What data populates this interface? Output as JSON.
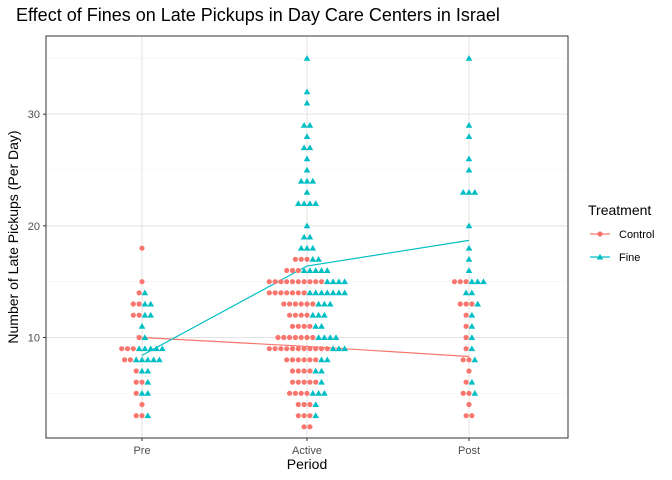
{
  "chart_data": {
    "type": "scatter",
    "title": "Effect of Fines on Late Pickups in Day Care Centers in Israel",
    "xlabel": "Period",
    "ylabel": "Number of Late Pickups (Per Day)",
    "categories": [
      "Pre",
      "Active",
      "Post"
    ],
    "ylim": [
      1,
      37
    ],
    "yticks": [
      10,
      20,
      30
    ],
    "grid": true,
    "legend": {
      "title": "Treatment",
      "position": "right",
      "entries": [
        {
          "label": "Control",
          "shape": "circle",
          "color": "#F8766D"
        },
        {
          "label": "Fine",
          "shape": "triangle",
          "color": "#00BFC4"
        }
      ]
    },
    "series": [
      {
        "name": "Control",
        "shape": "circle",
        "color": "#F8766D",
        "means": [
          10.0,
          9.2,
          8.3
        ],
        "values": {
          "Pre": [
            18,
            15,
            14,
            13,
            13,
            12,
            12,
            10,
            9,
            9,
            9,
            8,
            8,
            7,
            6,
            6,
            5,
            4,
            3,
            3
          ],
          "Active": [
            17,
            17,
            17,
            16,
            16,
            16,
            15,
            15,
            15,
            15,
            15,
            15,
            15,
            15,
            15,
            15,
            14,
            14,
            14,
            14,
            14,
            14,
            14,
            13,
            13,
            13,
            13,
            13,
            13,
            12,
            12,
            12,
            12,
            11,
            11,
            11,
            11,
            10,
            10,
            10,
            10,
            10,
            10,
            10,
            9,
            9,
            9,
            9,
            9,
            9,
            9,
            9,
            9,
            9,
            9,
            8,
            8,
            8,
            8,
            8,
            8,
            7,
            7,
            7,
            7,
            6,
            6,
            6,
            6,
            6,
            5,
            5,
            5,
            5,
            4,
            4,
            4,
            3,
            3,
            3,
            2,
            2
          ],
          "Post": [
            15,
            15,
            15,
            13,
            13,
            13,
            12,
            11,
            10,
            9,
            8,
            8,
            7,
            6,
            5,
            5,
            4,
            3,
            3
          ]
        }
      },
      {
        "name": "Fine",
        "shape": "triangle",
        "color": "#00BFC4",
        "means": [
          8.4,
          16.4,
          18.7
        ],
        "values": {
          "Pre": [
            14,
            13,
            13,
            12,
            12,
            11,
            10,
            9,
            9,
            9,
            9,
            9,
            8,
            8,
            8,
            8,
            8,
            7,
            7,
            6,
            5,
            5,
            3
          ],
          "Active": [
            35,
            32,
            31,
            29,
            29,
            28,
            27,
            27,
            26,
            25,
            24,
            24,
            24,
            23,
            22,
            22,
            22,
            22,
            20,
            19,
            19,
            18,
            18,
            18,
            17,
            17,
            16,
            16,
            16,
            16,
            16,
            15,
            15,
            15,
            15,
            14,
            14,
            14,
            14,
            14,
            14,
            14,
            13,
            13,
            13,
            12,
            12,
            12,
            11,
            11,
            10,
            10,
            10,
            10,
            9,
            9,
            9,
            8,
            8,
            7,
            7,
            6,
            5,
            5,
            5,
            4,
            3
          ],
          "Post": [
            35,
            29,
            28,
            26,
            25,
            23,
            23,
            23,
            20,
            18,
            17,
            16,
            15,
            15,
            15,
            14,
            14,
            13,
            12,
            11,
            10,
            9,
            8,
            6,
            5
          ]
        }
      }
    ]
  }
}
